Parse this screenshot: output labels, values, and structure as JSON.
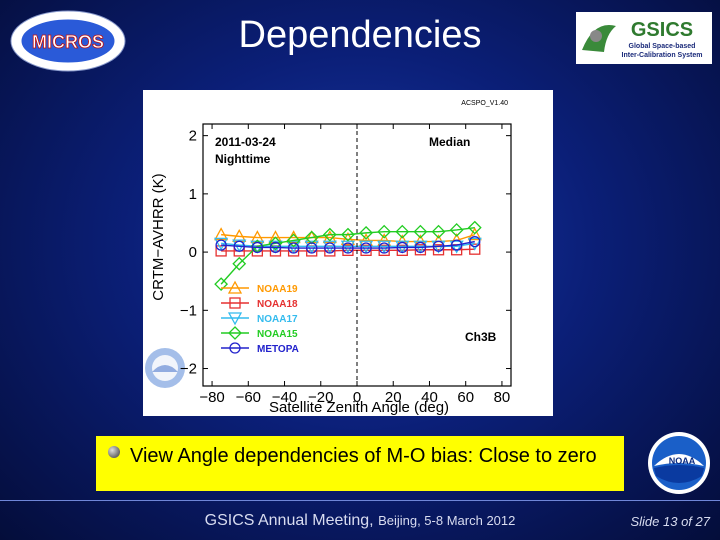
{
  "slide": {
    "title": "Dependencies",
    "logo_left_text": "MICROS",
    "logo_right_text": "GSICS",
    "logo_right_line1": "Global Space-based",
    "logo_right_line2": "Inter-Calibration System",
    "noaa_text": "NOAA",
    "bullet": "View Angle dependencies of M-O bias: Close to zero",
    "footer_main": "GSICS Annual Meeting,",
    "footer_place": "Beijing, 5-8 March 2012",
    "slide_number": "Slide 13 of 27"
  },
  "colors": {
    "bullet_bg": "#ffff00",
    "NOAA19": "#ff9900",
    "NOAA18": "#e53030",
    "NOAA17": "#33bbee",
    "NOAA15": "#22cc22",
    "METOPA": "#2222cc"
  },
  "chart_data": {
    "type": "line",
    "version_label": "ACSPO_V1.40",
    "annotations": [
      "2011-03-24",
      "Nighttime",
      "Median",
      "Ch3B"
    ],
    "xlabel": "Satellite Zenith Angle (deg)",
    "ylabel": "CRTM−AVHRR (K)",
    "xlim": [
      -85,
      85
    ],
    "ylim": [
      -2.3,
      2.2
    ],
    "xticks": [
      -80,
      -60,
      -40,
      -20,
      0,
      20,
      40,
      60,
      80
    ],
    "yticks": [
      -2,
      -1,
      0,
      1,
      2
    ],
    "xtick_labels": [
      "−80",
      "−60",
      "−40",
      "−20",
      "0",
      "20",
      "40",
      "60",
      "80"
    ],
    "ytick_labels": [
      "−2",
      "−1",
      "0",
      "1",
      "2"
    ],
    "vline_x": 0,
    "legend_position": "bottom-left",
    "x": [
      -75,
      -65,
      -55,
      -45,
      -35,
      -25,
      -15,
      -5,
      5,
      15,
      25,
      35,
      45,
      55,
      65
    ],
    "series": [
      {
        "name": "NOAA19",
        "marker": "triangle-up",
        "values": [
          0.3,
          0.27,
          0.25,
          0.25,
          0.25,
          0.25,
          0.25,
          0.22,
          0.2,
          0.2,
          0.18,
          0.18,
          0.18,
          0.2,
          0.3
        ]
      },
      {
        "name": "NOAA18",
        "marker": "square",
        "values": [
          0.02,
          0.02,
          0.02,
          0.02,
          0.02,
          0.02,
          0.02,
          0.03,
          0.03,
          0.03,
          0.03,
          0.04,
          0.04,
          0.04,
          0.05
        ]
      },
      {
        "name": "NOAA17",
        "marker": "triangle-down",
        "values": [
          0.15,
          0.12,
          0.1,
          0.1,
          0.1,
          0.1,
          0.1,
          0.1,
          0.1,
          0.1,
          0.1,
          0.1,
          0.1,
          0.1,
          0.15
        ]
      },
      {
        "name": "NOAA15",
        "marker": "diamond",
        "values": [
          -0.55,
          -0.2,
          0.1,
          0.15,
          0.2,
          0.25,
          0.3,
          0.3,
          0.33,
          0.35,
          0.35,
          0.35,
          0.35,
          0.38,
          0.42
        ]
      },
      {
        "name": "METOPA",
        "marker": "circle",
        "values": [
          0.12,
          0.1,
          0.08,
          0.08,
          0.07,
          0.07,
          0.07,
          0.07,
          0.07,
          0.07,
          0.08,
          0.08,
          0.1,
          0.12,
          0.18
        ]
      }
    ]
  }
}
